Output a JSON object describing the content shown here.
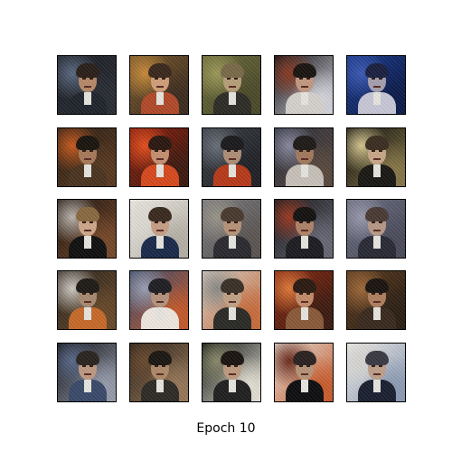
{
  "caption": "Epoch 10",
  "tiles": [
    {
      "bg": [
        "#1c1f24",
        "#5b6a82",
        "#2a2d35"
      ],
      "face": "#b88a6a",
      "hair": "#2a1e18",
      "body": "#20242c"
    },
    {
      "bg": [
        "#7a5a2c",
        "#c98a3a",
        "#3a2a1e"
      ],
      "face": "#d2a07a",
      "hair": "#3a281c",
      "body": "#b24a2a"
    },
    {
      "bg": [
        "#6a6a3a",
        "#9e9a5a",
        "#4a4a2a"
      ],
      "face": "#b8a07a",
      "hair": "#7a6a4a",
      "body": "#2e2c26"
    },
    {
      "bg": [
        "#0c0c10",
        "#8a3a22",
        "#d8d8e0"
      ],
      "face": "#c49a82",
      "hair": "#1a1410",
      "body": "#d6d2ce"
    },
    {
      "bg": [
        "#1a3a8a",
        "#3c5ab4",
        "#0c1a48"
      ],
      "face": "#a6a0b0",
      "hair": "#1a2040",
      "body": "#c8c8d8"
    },
    {
      "bg": [
        "#2a1e14",
        "#c85a1e",
        "#5a3a20"
      ],
      "face": "#a87a5a",
      "hair": "#1a140e",
      "body": "#4a3420"
    },
    {
      "bg": [
        "#8a1e0e",
        "#e4501e",
        "#3a1a10"
      ],
      "face": "#c69072",
      "hair": "#2a1810",
      "body": "#d84a1e"
    },
    {
      "bg": [
        "#3a3e44",
        "#6a707a",
        "#1e2024"
      ],
      "face": "#b09078",
      "hair": "#1a1a1c",
      "body": "#b83a1a"
    },
    {
      "bg": [
        "#2a2e3c",
        "#8a8aa0",
        "#5a4a3e"
      ],
      "face": "#a47a5e",
      "hair": "#1e1a18",
      "body": "#c8c2ba"
    },
    {
      "bg": [
        "#0a0a08",
        "#d8c890",
        "#8a7a4a"
      ],
      "face": "#caa88a",
      "hair": "#3a2e20",
      "body": "#1a1814"
    },
    {
      "bg": [
        "#1a120e",
        "#bcb6ae",
        "#7a4a2a"
      ],
      "face": "#d0a88a",
      "hair": "#8a6a40",
      "body": "#101010"
    },
    {
      "bg": [
        "#f0eee8",
        "#dedcd4",
        "#b4aea4"
      ],
      "face": "#c8a086",
      "hair": "#3a2a1e",
      "body": "#1a2a4a"
    },
    {
      "bg": [
        "#7a7a7e",
        "#9a968a",
        "#5a5450"
      ],
      "face": "#b8947a",
      "hair": "#4a3a2e",
      "body": "#2a2a30"
    },
    {
      "bg": [
        "#141416",
        "#9a3a24",
        "#6a6a78"
      ],
      "face": "#b08468",
      "hair": "#141210",
      "body": "#1c1c22"
    },
    {
      "bg": [
        "#6a6e80",
        "#9a9aae",
        "#4a4a5a"
      ],
      "face": "#b89a88",
      "hair": "#4a3a34",
      "body": "#2a2a36"
    },
    {
      "bg": [
        "#2a241e",
        "#d0ccc4",
        "#6a4a2a"
      ],
      "face": "#a88a72",
      "hair": "#1e1a16",
      "body": "#c86a2a"
    },
    {
      "bg": [
        "#3a4a6a",
        "#9aa0b4",
        "#c85a2a"
      ],
      "face": "#b4947e",
      "hair": "#1e1e24",
      "body": "#f0e8e0"
    },
    {
      "bg": [
        "#d8d2c8",
        "#8a8a86",
        "#c86a3a"
      ],
      "face": "#c2a286",
      "hair": "#3a3028",
      "body": "#2a2a26"
    },
    {
      "bg": [
        "#8a2a12",
        "#e07a3a",
        "#3a1a10"
      ],
      "face": "#c48c6a",
      "hair": "#2a1a12",
      "body": "#8a5a3a"
    },
    {
      "bg": [
        "#5a3a1e",
        "#a06a3a",
        "#2a1e14"
      ],
      "face": "#b08060",
      "hair": "#1a1410",
      "body": "#3a2a1e"
    },
    {
      "bg": [
        "#0e0e12",
        "#5a6a8a",
        "#9aa0b0"
      ],
      "face": "#c09a84",
      "hair": "#2a2420",
      "body": "#3a4a6a"
    },
    {
      "bg": [
        "#2a2018",
        "#6a4a2e",
        "#9a7a5a"
      ],
      "face": "#b08a6a",
      "hair": "#1a1612",
      "body": "#2e2a26"
    },
    {
      "bg": [
        "#0c100c",
        "#8a8a6a",
        "#e8e4d8"
      ],
      "face": "#c09c80",
      "hair": "#1a1410",
      "body": "#202020"
    },
    {
      "bg": [
        "#e8e2da",
        "#6a2a1a",
        "#c85a2a"
      ],
      "face": "#b89478",
      "hair": "#2a2220",
      "body": "#0e0e10"
    },
    {
      "bg": [
        "#f0eeea",
        "#d8d6d2",
        "#8a9ab4"
      ],
      "face": "#c0a08c",
      "hair": "#3a3a44",
      "body": "#1a2030"
    }
  ]
}
